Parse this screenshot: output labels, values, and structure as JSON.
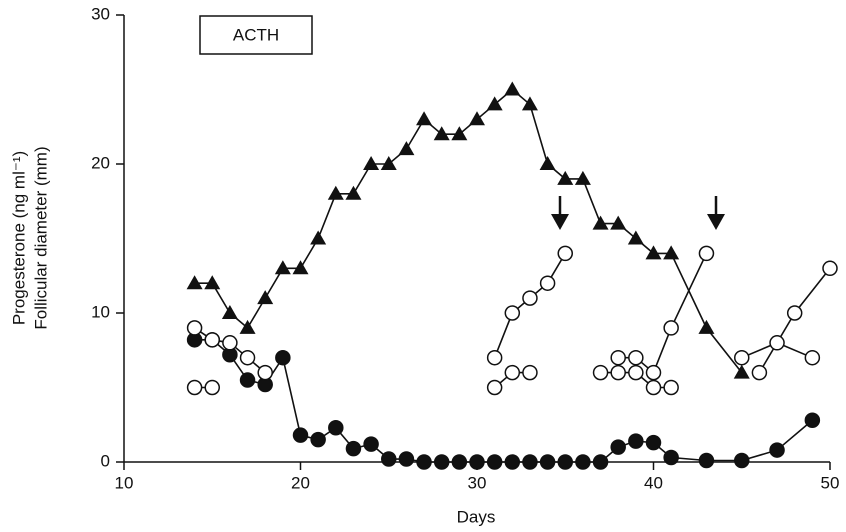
{
  "chart_data": {
    "type": "line",
    "annotation": "ACTH",
    "xlabel": "Days",
    "ylabel": [
      "Progesterone (ng ml⁻¹)",
      "Follicular diameter (mm)"
    ],
    "xlim": [
      10,
      50
    ],
    "xticks": [
      10,
      20,
      30,
      40,
      50
    ],
    "ylim": [
      0,
      30
    ],
    "yticks": [
      0,
      10,
      20,
      30
    ],
    "series": [
      {
        "marker": "triangle",
        "color": "#111111",
        "x": [
          14,
          15,
          16,
          17,
          18,
          19,
          20,
          21,
          22,
          23,
          24,
          25,
          26,
          27,
          28,
          29,
          30,
          31,
          32,
          33,
          34,
          35,
          36,
          37,
          38,
          39,
          40,
          41,
          43,
          45
        ],
        "values": [
          12,
          12,
          10,
          9,
          11,
          13,
          13,
          15,
          18,
          18,
          20,
          20,
          21,
          23,
          22,
          22,
          23,
          24,
          25,
          24,
          20,
          19,
          19,
          16,
          16,
          15,
          14,
          14,
          9,
          6
        ]
      },
      {
        "marker": "filled-circle",
        "color": "#111111",
        "x": [
          14,
          15,
          16,
          17,
          18,
          19,
          20,
          21,
          22,
          23,
          24,
          25,
          26,
          27,
          28,
          29,
          30,
          31,
          32,
          33,
          34,
          35,
          36,
          37,
          38,
          39,
          40,
          41,
          43,
          45,
          47,
          49
        ],
        "values": [
          8.2,
          8.2,
          7.2,
          5.5,
          5.2,
          7,
          1.8,
          1.5,
          2.3,
          0.9,
          1.2,
          0.2,
          0.2,
          0,
          0,
          0,
          0,
          0,
          0,
          0,
          0,
          0,
          0,
          0,
          1,
          1.4,
          1.3,
          0.3,
          0.1,
          0.1,
          0.8,
          2.8
        ]
      },
      {
        "marker": "open-circle",
        "color": "#111111",
        "x": [
          14,
          15,
          16,
          17,
          18
        ],
        "values": [
          9,
          8.2,
          8,
          7,
          6
        ]
      },
      {
        "marker": "open-circle",
        "color": "#111111",
        "x": [
          14,
          15
        ],
        "values": [
          5,
          5
        ]
      },
      {
        "marker": "open-circle",
        "color": "#111111",
        "x": [
          31,
          32,
          33,
          34,
          35
        ],
        "values": [
          7,
          10,
          11,
          12,
          14
        ]
      },
      {
        "marker": "open-circle",
        "color": "#111111",
        "x": [
          31,
          32,
          33
        ],
        "values": [
          5,
          6,
          6
        ]
      },
      {
        "marker": "open-circle",
        "color": "#111111",
        "x": [
          37,
          38,
          39,
          40,
          41
        ],
        "values": [
          6,
          6,
          6,
          5,
          5
        ]
      },
      {
        "marker": "open-circle",
        "color": "#111111",
        "x": [
          38,
          39,
          40,
          41,
          43
        ],
        "values": [
          7,
          7,
          6,
          9,
          14
        ]
      },
      {
        "marker": "open-circle",
        "color": "#111111",
        "x": [
          45,
          47,
          49
        ],
        "values": [
          7,
          8,
          7
        ]
      },
      {
        "marker": "open-circle",
        "color": "#111111",
        "x": [
          46,
          48,
          50
        ],
        "values": [
          6,
          10,
          13
        ]
      }
    ]
  }
}
